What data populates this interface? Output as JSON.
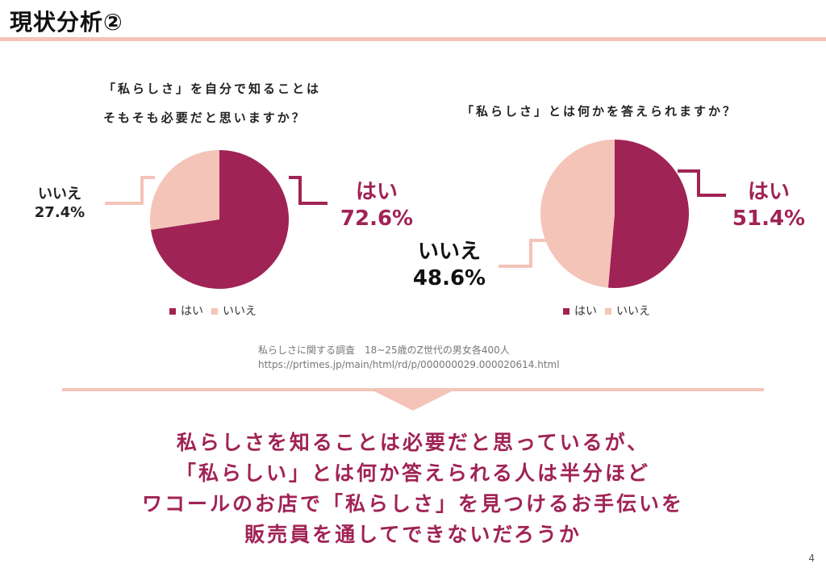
{
  "title": "現状分析②",
  "colors": {
    "yes": "#a02355",
    "no": "#f4c4b8",
    "accent_rule": "#f4c4b8"
  },
  "chart_data": [
    {
      "type": "pie",
      "title_lines": [
        "「私らしさ」を自分で知ることは",
        "そもそも必要だと思いますか？"
      ],
      "categories": [
        "はい",
        "いいえ"
      ],
      "values": [
        72.6,
        27.4
      ],
      "labels": {
        "yes": {
          "name": "はい",
          "pct": "72.6%"
        },
        "no": {
          "name": "いいえ",
          "pct": "27.4%"
        }
      },
      "legend": [
        "はい",
        "いいえ"
      ],
      "legend_position": "bottom"
    },
    {
      "type": "pie",
      "title_lines": [
        "「私らしさ」とは何かを答えられますか？"
      ],
      "categories": [
        "はい",
        "いいえ"
      ],
      "values": [
        51.4,
        48.6
      ],
      "labels": {
        "yes": {
          "name": "はい",
          "pct": "51.4%"
        },
        "no": {
          "name": "いいえ",
          "pct": "48.6%"
        }
      },
      "legend": [
        "はい",
        "いいえ"
      ],
      "legend_position": "bottom"
    }
  ],
  "source": {
    "line1": "私らしさに関する調査　18~25歳のZ世代の男女各400人",
    "line2": "https://prtimes.jp/main/html/rd/p/000000029.000020614.html"
  },
  "conclusion": [
    "私らしさを知ることは必要だと思っているが、",
    "「私らしい」とは何か答えられる人は半分ほど",
    "ワコールのお店で「私らしさ」を見つけるお手伝いを",
    "販売員を通してできないだろうか"
  ],
  "page_number": "4"
}
